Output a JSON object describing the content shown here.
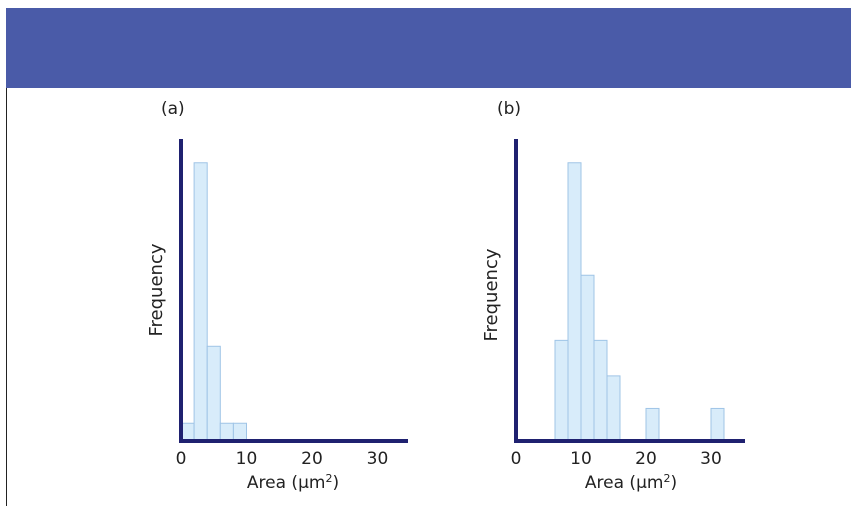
{
  "chart_data": [
    {
      "type": "bar",
      "panel_label": "(a)",
      "xlabel": "Area (µm²)",
      "xlabel_main": "Area (",
      "xlabel_unit": "µm",
      "xlabel_exp": "2",
      "xlabel_close": ")",
      "ylabel": "Frequency",
      "xlim": [
        0,
        37
      ],
      "ylim": [
        0,
        1
      ],
      "xticks": [
        "0",
        "10",
        "20",
        "30"
      ],
      "xtick_values": [
        0,
        10,
        20,
        30
      ],
      "bar_width": 2,
      "bins_start": [
        0,
        2,
        4,
        6,
        8
      ],
      "values": [
        0.06,
        0.94,
        0.32,
        0.06,
        0.06
      ],
      "colors": {
        "bar_fill": "#d8ecfa",
        "bar_stroke": "#9fc4e6",
        "axis": "#1f2170"
      }
    },
    {
      "type": "bar",
      "panel_label": "(b)",
      "xlabel": "Area (µm²)",
      "xlabel_main": "Area (",
      "xlabel_unit": "µm",
      "xlabel_exp": "2",
      "xlabel_close": ")",
      "ylabel": "Frequency",
      "xlim": [
        0,
        37
      ],
      "ylim": [
        0,
        1
      ],
      "xticks": [
        "0",
        "10",
        "20",
        "30"
      ],
      "xtick_values": [
        0,
        10,
        20,
        30
      ],
      "bar_width": 2,
      "bins_start": [
        6,
        8,
        10,
        12,
        14,
        20,
        30
      ],
      "values": [
        0.34,
        0.94,
        0.56,
        0.34,
        0.22,
        0.11,
        0.11
      ],
      "colors": {
        "bar_fill": "#d8ecfa",
        "bar_stroke": "#9fc4e6",
        "axis": "#1f2170"
      }
    }
  ],
  "colors": {
    "banner": "#4a5ba8"
  }
}
